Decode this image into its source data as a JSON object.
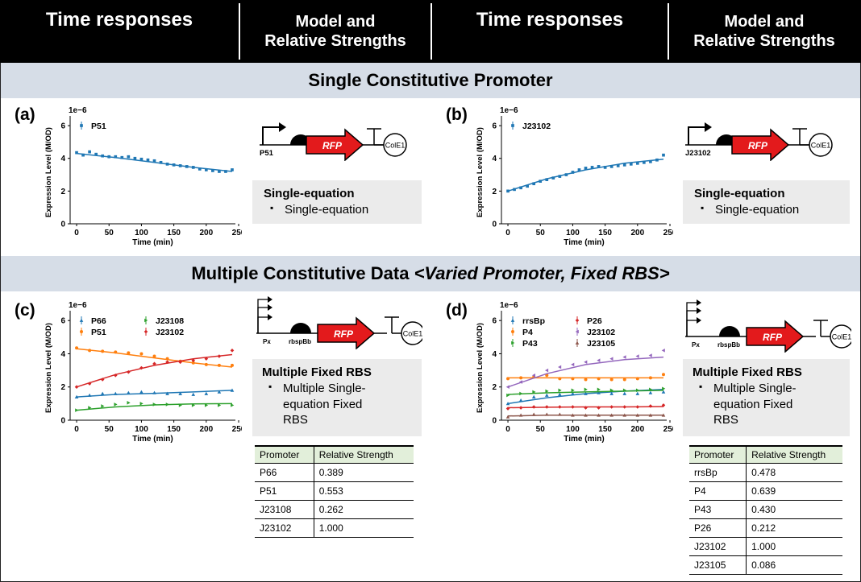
{
  "header": {
    "col1": "Time responses",
    "col2_line1": "Model and",
    "col2_line2": "Relative Strengths",
    "col3": "Time responses",
    "col4_line1": "Model and",
    "col4_line2": "Relative Strengths"
  },
  "band1": {
    "title": "Single Constitutive Promoter"
  },
  "band2": {
    "prefix": "Multiple Constitutive Data ",
    "italic": "<Varied Promoter, Fixed RBS>"
  },
  "panels": {
    "a": {
      "label": "(a)"
    },
    "b": {
      "label": "(b)"
    },
    "c": {
      "label": "(c)"
    },
    "d": {
      "label": "(d)"
    }
  },
  "circuits": {
    "a": {
      "promoter": "P51",
      "gene": "RFP",
      "origin": "ColE1"
    },
    "b": {
      "promoter": "J23102",
      "gene": "RFP",
      "origin": "ColE1"
    },
    "c": {
      "promoter": "Px",
      "rbs": "rbspBb",
      "gene": "RFP",
      "origin": "ColE1"
    },
    "d": {
      "promoter": "Px",
      "rbs": "rbspBb",
      "gene": "RFP",
      "origin": "ColE1"
    }
  },
  "models": {
    "a": {
      "title": "Single-equation",
      "item": "Single-equation"
    },
    "b": {
      "title": "Single-equation",
      "item": "Single-equation"
    },
    "c": {
      "title": "Multiple Fixed RBS",
      "item_l1": "Multiple Single-",
      "item_l2": "equation Fixed",
      "item_l3": "RBS"
    },
    "d": {
      "title": "Multiple Fixed RBS",
      "item_l1": "Multiple Single-",
      "item_l2": "equation Fixed",
      "item_l3": "RBS"
    }
  },
  "tables": {
    "c": {
      "headers": [
        "Promoter",
        "Relative Strength"
      ],
      "rows": [
        [
          "P66",
          "0.389"
        ],
        [
          "P51",
          "0.553"
        ],
        [
          "J23108",
          "0.262"
        ],
        [
          "J23102",
          "1.000"
        ]
      ]
    },
    "d": {
      "headers": [
        "Promoter",
        "Relative Strength"
      ],
      "rows": [
        [
          "rrsBp",
          "0.478"
        ],
        [
          "P4",
          "0.639"
        ],
        [
          "P43",
          "0.430"
        ],
        [
          "P26",
          "0.212"
        ],
        [
          "J23102",
          "1.000"
        ],
        [
          "J23105",
          "0.086"
        ]
      ]
    }
  },
  "chart_data": [
    {
      "id": "a",
      "type": "scatter",
      "xlabel": "Time (min)",
      "ylabel": "Expression Level (M/OD)",
      "scale_label": "1e−6",
      "xlim": [
        -10,
        245
      ],
      "ylim": [
        0,
        6.3
      ],
      "xticks": [
        0,
        50,
        100,
        150,
        200,
        250
      ],
      "yticks": [
        0,
        2,
        4,
        6
      ],
      "legend": "top-left",
      "series": [
        {
          "name": "P51",
          "color": "#1f77b4",
          "marker": "square",
          "x": [
            0,
            10,
            20,
            30,
            40,
            50,
            60,
            70,
            80,
            90,
            100,
            110,
            120,
            130,
            140,
            150,
            160,
            170,
            180,
            190,
            200,
            210,
            220,
            230,
            240
          ],
          "y": [
            4.35,
            4.2,
            4.4,
            4.25,
            4.15,
            4.1,
            4.1,
            4.05,
            4.1,
            4.0,
            3.95,
            3.9,
            3.85,
            3.75,
            3.65,
            3.6,
            3.55,
            3.5,
            3.45,
            3.35,
            3.3,
            3.25,
            3.2,
            3.2,
            3.3
          ],
          "fit": [
            [
              0,
              4.3
            ],
            [
              60,
              4.05
            ],
            [
              120,
              3.75
            ],
            [
              180,
              3.45
            ],
            [
              240,
              3.2
            ]
          ]
        }
      ]
    },
    {
      "id": "b",
      "type": "scatter",
      "xlabel": "Time (min)",
      "ylabel": "Expression Level (M/OD)",
      "scale_label": "1e−6",
      "xlim": [
        -10,
        245
      ],
      "ylim": [
        0,
        6.3
      ],
      "xticks": [
        0,
        50,
        100,
        150,
        200,
        250
      ],
      "yticks": [
        0,
        2,
        4,
        6
      ],
      "legend": "top-left",
      "series": [
        {
          "name": "J23102",
          "color": "#1f77b4",
          "marker": "square",
          "x": [
            0,
            10,
            20,
            30,
            40,
            50,
            60,
            70,
            80,
            90,
            100,
            110,
            120,
            130,
            140,
            150,
            160,
            170,
            180,
            190,
            200,
            210,
            220,
            230,
            240
          ],
          "y": [
            2.0,
            2.1,
            2.2,
            2.3,
            2.45,
            2.6,
            2.7,
            2.8,
            2.9,
            3.0,
            3.15,
            3.3,
            3.4,
            3.45,
            3.5,
            3.45,
            3.5,
            3.55,
            3.6,
            3.65,
            3.7,
            3.75,
            3.8,
            3.9,
            4.2
          ],
          "fit": [
            [
              0,
              2.0
            ],
            [
              60,
              2.75
            ],
            [
              120,
              3.3
            ],
            [
              180,
              3.7
            ],
            [
              240,
              3.95
            ]
          ]
        }
      ]
    },
    {
      "id": "c",
      "type": "scatter",
      "xlabel": "Time (min)",
      "ylabel": "Expression Level (M/OD)",
      "scale_label": "1e−6",
      "xlim": [
        -10,
        245
      ],
      "ylim": [
        0,
        6.3
      ],
      "xticks": [
        0,
        50,
        100,
        150,
        200,
        250
      ],
      "yticks": [
        0,
        2,
        4,
        6
      ],
      "legend": "top",
      "series": [
        {
          "name": "P66",
          "color": "#1f77b4",
          "marker": "triangle-up",
          "x": [
            0,
            20,
            40,
            60,
            80,
            100,
            120,
            140,
            160,
            180,
            200,
            220,
            240
          ],
          "y": [
            1.4,
            1.5,
            1.6,
            1.6,
            1.65,
            1.7,
            1.65,
            1.6,
            1.6,
            1.55,
            1.6,
            1.7,
            1.8
          ],
          "fit": [
            [
              0,
              1.4
            ],
            [
              60,
              1.55
            ],
            [
              120,
              1.62
            ],
            [
              180,
              1.7
            ],
            [
              240,
              1.8
            ]
          ]
        },
        {
          "name": "P51",
          "color": "#ff7f0e",
          "marker": "circle",
          "x": [
            0,
            20,
            40,
            60,
            80,
            100,
            120,
            140,
            160,
            180,
            200,
            220,
            240
          ],
          "y": [
            4.35,
            4.2,
            4.15,
            4.1,
            4.05,
            4.0,
            3.85,
            3.7,
            3.55,
            3.45,
            3.35,
            3.3,
            3.3
          ],
          "fit": [
            [
              0,
              4.3
            ],
            [
              60,
              4.05
            ],
            [
              120,
              3.75
            ],
            [
              180,
              3.45
            ],
            [
              240,
              3.2
            ]
          ]
        },
        {
          "name": "J23108",
          "color": "#2ca02c",
          "marker": "triangle-right",
          "x": [
            0,
            20,
            40,
            60,
            80,
            100,
            120,
            140,
            160,
            180,
            200,
            220,
            240
          ],
          "y": [
            0.6,
            0.75,
            0.85,
            0.95,
            1.05,
            1.0,
            0.95,
            0.95,
            0.9,
            0.9,
            0.9,
            0.9,
            0.9
          ],
          "fit": [
            [
              0,
              0.6
            ],
            [
              60,
              0.8
            ],
            [
              120,
              0.92
            ],
            [
              180,
              0.98
            ],
            [
              240,
              1.0
            ]
          ]
        },
        {
          "name": "J23102",
          "color": "#d62728",
          "marker": "diamond",
          "x": [
            0,
            20,
            40,
            60,
            80,
            100,
            120,
            140,
            160,
            180,
            200,
            220,
            240
          ],
          "y": [
            2.0,
            2.2,
            2.45,
            2.7,
            2.9,
            3.15,
            3.4,
            3.5,
            3.5,
            3.6,
            3.7,
            3.85,
            4.2
          ],
          "fit": [
            [
              0,
              2.0
            ],
            [
              60,
              2.75
            ],
            [
              120,
              3.3
            ],
            [
              180,
              3.7
            ],
            [
              240,
              3.95
            ]
          ]
        }
      ]
    },
    {
      "id": "d",
      "type": "scatter",
      "xlabel": "Time (min)",
      "ylabel": "Expression Level (M/OD)",
      "scale_label": "1e−6",
      "xlim": [
        -10,
        245
      ],
      "ylim": [
        0,
        6.3
      ],
      "xticks": [
        0,
        50,
        100,
        150,
        200,
        250
      ],
      "yticks": [
        0,
        2,
        4,
        6
      ],
      "legend": "top",
      "series": [
        {
          "name": "rrsBp",
          "color": "#1f77b4",
          "marker": "triangle-up",
          "x": [
            0,
            20,
            40,
            60,
            80,
            100,
            120,
            140,
            160,
            180,
            200,
            220,
            240
          ],
          "y": [
            1.0,
            1.2,
            1.4,
            1.5,
            1.55,
            1.6,
            1.6,
            1.65,
            1.6,
            1.6,
            1.6,
            1.65,
            1.7
          ],
          "fit": [
            [
              0,
              1.0
            ],
            [
              60,
              1.35
            ],
            [
              120,
              1.6
            ],
            [
              180,
              1.75
            ],
            [
              240,
              1.85
            ]
          ]
        },
        {
          "name": "P4",
          "color": "#ff7f0e",
          "marker": "circle",
          "x": [
            0,
            20,
            40,
            60,
            80,
            100,
            120,
            140,
            160,
            180,
            200,
            220,
            240
          ],
          "y": [
            2.5,
            2.55,
            2.6,
            2.7,
            2.5,
            2.5,
            2.45,
            2.5,
            2.45,
            2.45,
            2.5,
            2.55,
            2.75
          ],
          "fit": [
            [
              0,
              2.55
            ],
            [
              60,
              2.55
            ],
            [
              120,
              2.55
            ],
            [
              180,
              2.55
            ],
            [
              240,
              2.55
            ]
          ]
        },
        {
          "name": "P43",
          "color": "#2ca02c",
          "marker": "triangle-right",
          "x": [
            0,
            20,
            40,
            60,
            80,
            100,
            120,
            140,
            160,
            180,
            200,
            220,
            240
          ],
          "y": [
            1.5,
            1.6,
            1.7,
            1.75,
            1.8,
            1.8,
            1.85,
            1.85,
            1.8,
            1.8,
            1.8,
            1.85,
            1.9
          ],
          "fit": [
            [
              0,
              1.55
            ],
            [
              60,
              1.65
            ],
            [
              120,
              1.7
            ],
            [
              180,
              1.75
            ],
            [
              240,
              1.8
            ]
          ]
        },
        {
          "name": "P26",
          "color": "#d62728",
          "marker": "diamond",
          "x": [
            0,
            20,
            40,
            60,
            80,
            100,
            120,
            140,
            160,
            180,
            200,
            220,
            240
          ],
          "y": [
            0.7,
            0.75,
            0.8,
            0.8,
            0.8,
            0.8,
            0.75,
            0.75,
            0.8,
            0.8,
            0.8,
            0.85,
            0.9
          ],
          "fit": [
            [
              0,
              0.75
            ],
            [
              60,
              0.78
            ],
            [
              120,
              0.8
            ],
            [
              180,
              0.8
            ],
            [
              240,
              0.82
            ]
          ]
        },
        {
          "name": "J23102",
          "color": "#9467bd",
          "marker": "triangle-left",
          "x": [
            0,
            20,
            40,
            60,
            80,
            100,
            120,
            140,
            160,
            180,
            200,
            220,
            240
          ],
          "y": [
            2.0,
            2.3,
            2.7,
            3.0,
            3.2,
            3.35,
            3.5,
            3.6,
            3.7,
            3.8,
            3.85,
            3.9,
            4.2
          ],
          "fit": [
            [
              0,
              2.0
            ],
            [
              60,
              2.8
            ],
            [
              120,
              3.35
            ],
            [
              180,
              3.65
            ],
            [
              240,
              3.8
            ]
          ]
        },
        {
          "name": "J23105",
          "color": "#8c564b",
          "marker": "triangle-up",
          "x": [
            0,
            20,
            40,
            60,
            80,
            100,
            120,
            140,
            160,
            180,
            200,
            220,
            240
          ],
          "y": [
            0.2,
            0.3,
            0.35,
            0.35,
            0.35,
            0.3,
            0.3,
            0.3,
            0.3,
            0.3,
            0.3,
            0.3,
            0.3
          ],
          "fit": [
            [
              0,
              0.25
            ],
            [
              60,
              0.3
            ],
            [
              120,
              0.3
            ],
            [
              180,
              0.3
            ],
            [
              240,
              0.3
            ]
          ]
        }
      ]
    }
  ]
}
